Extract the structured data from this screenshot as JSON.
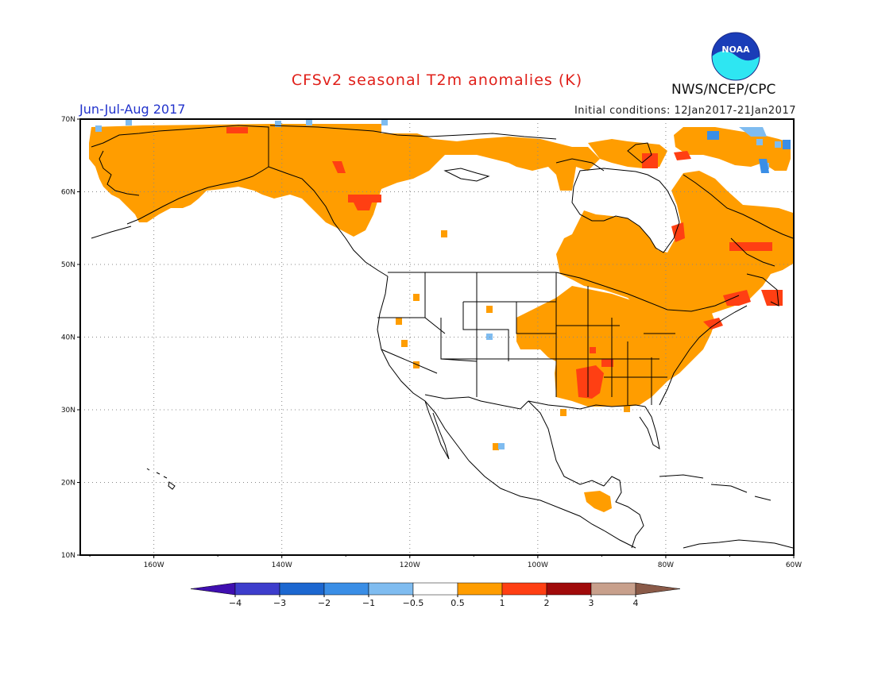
{
  "title": "CFSv2 seasonal T2m anomalies (K)",
  "season": "Jun-Jul-Aug 2017",
  "initial_conditions": "Initial conditions: 12Jan2017-21Jan2017",
  "agency": "NWS/NCEP/CPC",
  "logo_text": "NOAA",
  "lat_labels": [
    "70N",
    "60N",
    "50N",
    "40N",
    "30N",
    "20N",
    "10N"
  ],
  "lon_labels": [
    "160W",
    "140W",
    "120W",
    "100W",
    "80W",
    "60W"
  ],
  "colorbar": {
    "labels": [
      "-4",
      "-3",
      "-2",
      "-1",
      "-0.5",
      "0.5",
      "1",
      "2",
      "3",
      "4"
    ],
    "colors": [
      "#3f0fb0",
      "#3d3dcc",
      "#1c67d0",
      "#3a8ee6",
      "#7fbcf0",
      "#ffffff",
      "#ff9d00",
      "#ff3f13",
      "#a00a0a",
      "#c8a08c",
      "#8a5a48"
    ]
  },
  "colors": {
    "warm": "#ff9d00",
    "hot": "#ff3f13",
    "cool": "#7fbcf0",
    "cold": "#3a8ee6",
    "title": "#e0201a",
    "season": "#2233cc"
  }
}
